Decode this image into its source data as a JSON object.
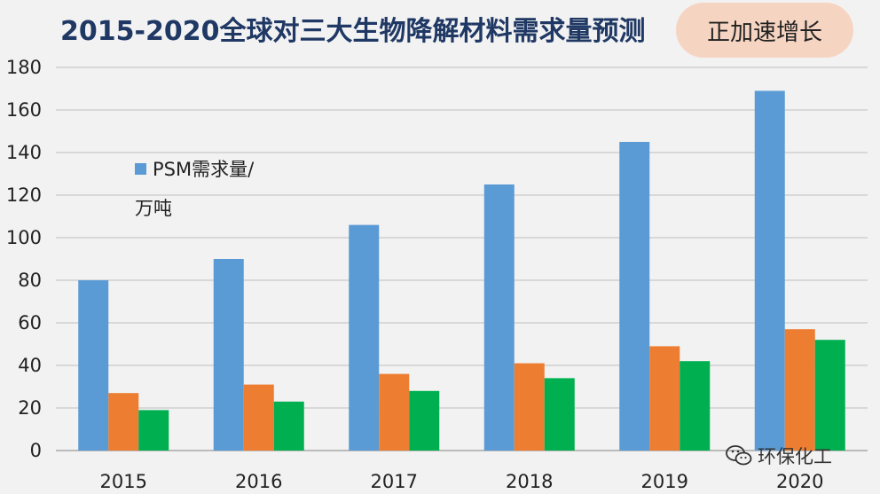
{
  "title": "2015-2020全球对三大生物降解材料需求量预测",
  "badge": "正加速增长",
  "watermark": "环保化工",
  "chart_data": {
    "type": "bar",
    "categories": [
      "2015",
      "2016",
      "2017",
      "2018",
      "2019",
      "2020"
    ],
    "series": [
      {
        "name": "PSM需求量/万吨",
        "color": "#5b9bd5",
        "values": [
          80,
          90,
          106,
          125,
          145,
          169
        ]
      },
      {
        "color": "#ed7d31",
        "values": [
          27,
          31,
          36,
          41,
          49,
          57
        ]
      },
      {
        "color": "#00b050",
        "values": [
          19,
          23,
          28,
          34,
          42,
          52
        ]
      }
    ],
    "legend": {
      "lines": [
        "PSM需求量/",
        "万吨"
      ],
      "placement": "top-left"
    },
    "ylim": [
      0,
      180
    ],
    "yticks": [
      0,
      20,
      40,
      60,
      80,
      100,
      120,
      140,
      160,
      180
    ],
    "grid": true
  }
}
